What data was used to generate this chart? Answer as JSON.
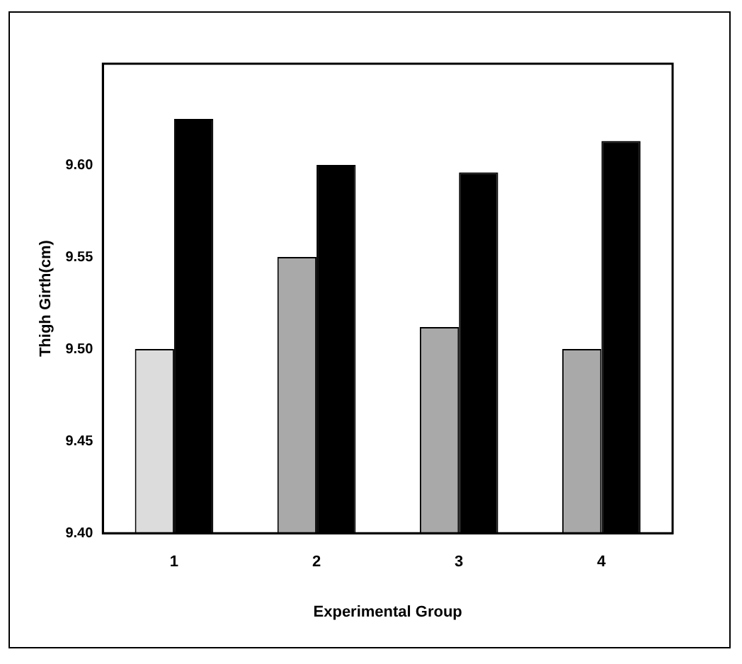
{
  "chart_data": {
    "type": "bar",
    "xlabel": "Experimental Group",
    "ylabel": "Thigh Girth(cm)",
    "categories": [
      "1",
      "2",
      "3",
      "4"
    ],
    "series": [
      {
        "colors": [
          "#dcdcdc",
          "#a9a9a9",
          "#a9a9a9",
          "#a9a9a9"
        ],
        "values": [
          9.5,
          9.55,
          9.512,
          9.5
        ]
      },
      {
        "color": "#000000",
        "values": [
          9.625,
          9.6,
          9.596,
          9.613
        ]
      }
    ],
    "ylim": [
      9.4,
      9.655
    ],
    "yticks": [
      {
        "value": 9.4,
        "label": "9.40"
      },
      9.45,
      {
        "value": 9.5,
        "label": "9.50"
      },
      9.55,
      {
        "value": 9.6,
        "label": "9.60"
      }
    ],
    "grid": false,
    "legend": false
  }
}
